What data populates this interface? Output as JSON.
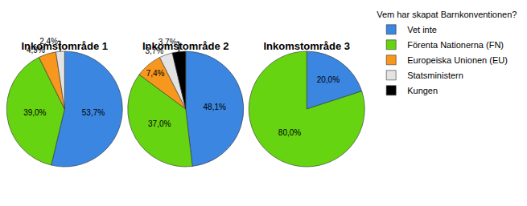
{
  "legend_title": "Vem har skapat Barnkonventionen?",
  "chart_data": [
    {
      "type": "pie",
      "title": "Inkomstområde 1",
      "categories": [
        "Vet inte",
        "Förenta Nationerna (FN)",
        "Europeiska Unionen (EU)",
        "Statsministern"
      ],
      "values": [
        53.7,
        39.0,
        4.9,
        2.4
      ],
      "value_labels": [
        "53,7%",
        "39,0%",
        "4,9%",
        "2,4%"
      ],
      "colors": [
        "#3a86e0",
        "#66d411",
        "#f7971e",
        "#e3e3e3"
      ],
      "data_labels": true
    },
    {
      "type": "pie",
      "title": "Inkomstområde 2",
      "categories": [
        "Vet inte",
        "Förenta Nationerna (FN)",
        "Europeiska Unionen (EU)",
        "Statsministern",
        "Kungen"
      ],
      "values": [
        48.1,
        37.0,
        7.4,
        3.7,
        3.7
      ],
      "value_labels": [
        "48,1%",
        "37,0%",
        "7,4%",
        "3,7%",
        "3,7%"
      ],
      "colors": [
        "#3a86e0",
        "#66d411",
        "#f7971e",
        "#e3e3e3",
        "#000000"
      ],
      "data_labels": true
    },
    {
      "type": "pie",
      "title": "Inkomstområde 3",
      "categories": [
        "Vet inte",
        "Förenta Nationerna (FN)"
      ],
      "values": [
        20.0,
        80.0
      ],
      "value_labels": [
        "20,0%",
        "80,0%"
      ],
      "colors": [
        "#3a86e0",
        "#66d411"
      ],
      "data_labels": true
    }
  ]
}
